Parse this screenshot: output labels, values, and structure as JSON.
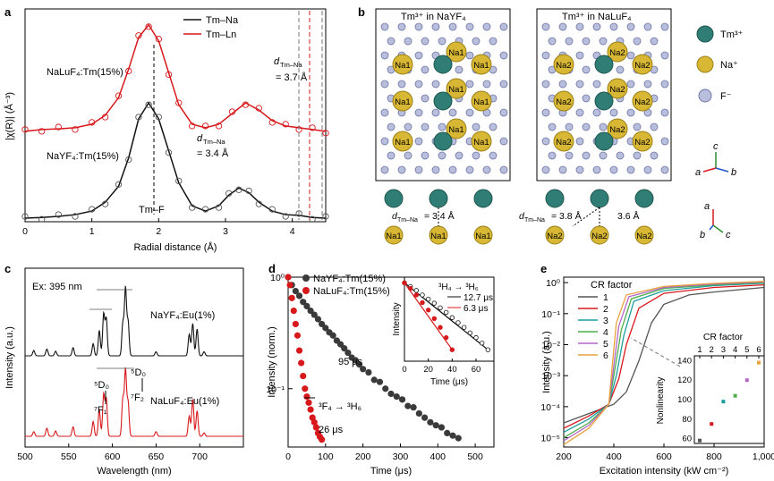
{
  "panels": {
    "a": {
      "letter": "a",
      "legend": [
        "Tm–Na",
        "Tm–Ln"
      ],
      "ylabel": "|χ(R)| (Å⁻³)",
      "xlabel": "Radial distance (Å)",
      "ticks": [
        "0",
        "1",
        "2",
        "3",
        "4"
      ],
      "ann_luf": "NaLuF₄:Tm(15%)",
      "ann_yf": "NaYF₄:Tm(15%)",
      "ann_d1_sym": "d",
      "ann_d1_sub": "Tm–Na",
      "ann_d1_val": "= 3.4 Å",
      "ann_d2_sym": "d",
      "ann_d2_sub": "Tm–Na",
      "ann_d2_val": "= 3.7 Å",
      "ann_tmf": "Tm–F"
    },
    "b": {
      "letter": "b",
      "title_left": "Tm³⁺ in NaYF₄",
      "title_right": "Tm³⁺ in NaLuF₄",
      "legend": [
        "Tm³⁺",
        "Na⁺",
        "F⁻"
      ],
      "na_left": "Na1",
      "na_right": "Na2",
      "d_left": "= 3.4 Å",
      "d_right1": "= 3.8 Å",
      "d_right2": "3.6 Å",
      "d_sym": "d",
      "d_sub": "Tm–Na",
      "axes1": [
        "c",
        "a",
        "b"
      ],
      "axes2": [
        "a",
        "b",
        "c"
      ]
    },
    "c": {
      "letter": "c",
      "ylabel": "Intensity (a.u.)",
      "xlabel": "Wavelength (nm)",
      "ticks": [
        "500",
        "550",
        "600",
        "650",
        "700"
      ],
      "ex": "Ex: 395 nm",
      "ann_y": "NaYF₄:Eu(1%)",
      "ann_l": "NaLuF₄:Eu(1%)",
      "d0": "⁵D₀",
      "f1": "⁷F₁",
      "f2": "⁷F₂"
    },
    "d": {
      "letter": "d",
      "ylabel": "Intensity (norm.)",
      "xlabel": "Time (μs)",
      "ticks": [
        "0",
        "100",
        "200",
        "300",
        "400",
        "500"
      ],
      "y_ticks": [
        "10⁰",
        "10⁻¹"
      ],
      "legend": [
        "NaYF₄:Tm(15%)",
        "NaLuF₄:Tm(15%)"
      ],
      "ann_95": "95 μs",
      "ann_26": "26 μs",
      "ann_trans": "³F₄ → ³H₆",
      "inset_title": "³H₄ → ³H₆",
      "inset_leg": [
        "12.7 μs",
        "6.3 μs"
      ],
      "inset_ylabel": "Intensity",
      "inset_xlabel": "Time (μs)",
      "inset_ticks": [
        "0",
        "20",
        "40",
        "60"
      ]
    },
    "e": {
      "letter": "e",
      "ylabel": "Intensity (a.u.)",
      "xlabel": "Excitation intensity (kW cm⁻²)",
      "x_ticks": [
        "200",
        "400",
        "600",
        "800",
        "1,000"
      ],
      "y_ticks": [
        "10⁰",
        "10⁻¹",
        "10⁻²",
        "10⁻³",
        "10⁻⁴",
        "10⁻⁵"
      ],
      "legend_title": "CR factor",
      "inset_title": "CR factor",
      "inset_ylabel": "Nonlinearity",
      "inset_xticks": [
        "1",
        "2",
        "3",
        "4",
        "5",
        "6"
      ],
      "inset_yticks": [
        "140",
        "120",
        "100",
        "80",
        "60"
      ]
    }
  },
  "colors": {
    "black": "#111111",
    "red": "#d7191c",
    "grey": "#3a3a3a"
  },
  "chart_data": [
    {
      "panel": "a",
      "type": "line",
      "xlabel": "Radial distance (Å)",
      "ylabel": "|χ(R)| (Å⁻³)",
      "xlim": [
        0,
        4.5
      ],
      "series": [
        {
          "name": "Tm–Na",
          "x": [
            0,
            0.25,
            0.5,
            0.75,
            1.0,
            1.2,
            1.4,
            1.55,
            1.7,
            1.85,
            2.0,
            2.15,
            2.3,
            2.5,
            2.7,
            2.9,
            3.05,
            3.2,
            3.35,
            3.5,
            3.7,
            3.9,
            4.1,
            4.3,
            4.5
          ],
          "y": [
            0.1,
            0.12,
            0.15,
            0.2,
            0.3,
            0.55,
            1.0,
            1.8,
            2.9,
            3.35,
            2.9,
            2.0,
            1.1,
            0.45,
            0.3,
            0.45,
            0.75,
            0.95,
            0.82,
            0.55,
            0.3,
            0.2,
            0.18,
            0.12,
            0.1
          ]
        },
        {
          "name": "Tm–Ln",
          "x": [
            0,
            0.25,
            0.5,
            0.75,
            1.0,
            1.2,
            1.4,
            1.55,
            1.7,
            1.85,
            2.0,
            2.15,
            2.3,
            2.5,
            2.7,
            2.9,
            3.1,
            3.3,
            3.5,
            3.7,
            3.9,
            4.1,
            4.3,
            4.5
          ],
          "y": [
            2.55,
            2.6,
            2.62,
            2.65,
            2.75,
            3.0,
            3.5,
            4.3,
            5.2,
            5.55,
            5.1,
            4.2,
            3.3,
            2.75,
            2.65,
            2.75,
            3.05,
            3.35,
            3.15,
            2.85,
            2.7,
            2.65,
            2.6,
            2.55
          ]
        }
      ]
    },
    {
      "panel": "c",
      "type": "line",
      "xlabel": "Wavelength (nm)",
      "ylabel": "Intensity (a.u.)",
      "xlim": [
        500,
        750
      ],
      "peaks_nm": [
        510,
        525,
        535,
        555,
        578,
        585,
        590,
        593,
        612,
        615,
        618,
        650,
        688,
        692,
        697,
        705
      ],
      "series": [
        {
          "name": "NaYF₄:Eu(1%)",
          "heights": [
            0.08,
            0.1,
            0.07,
            0.12,
            0.18,
            0.38,
            0.62,
            0.55,
            0.48,
            1.0,
            0.5,
            0.06,
            0.32,
            0.48,
            0.4,
            0.06
          ]
        },
        {
          "name": "NaLuF₄:Eu(1%)",
          "heights": [
            0.07,
            0.12,
            0.08,
            0.14,
            0.22,
            0.4,
            0.62,
            0.55,
            0.55,
            0.98,
            0.5,
            0.07,
            0.3,
            0.55,
            0.38,
            0.05
          ]
        }
      ]
    },
    {
      "panel": "d",
      "type": "scatter",
      "xlabel": "Time (μs)",
      "ylabel": "Intensity (norm.)",
      "xlim": [
        0,
        550
      ],
      "y_log": true,
      "ylim": [
        0.03,
        1
      ],
      "series": [
        {
          "name": "NaYF₄:Tm(15%)",
          "x": [
            0,
            10,
            20,
            30,
            40,
            50,
            60,
            70,
            80,
            90,
            100,
            110,
            120,
            130,
            140,
            150,
            160,
            170,
            180,
            190,
            200,
            215,
            230,
            245,
            260,
            275,
            290,
            305,
            320,
            335,
            350,
            365,
            380,
            395,
            410,
            425,
            440,
            455
          ],
          "y": [
            1.0,
            0.85,
            0.75,
            0.68,
            0.6,
            0.55,
            0.5,
            0.46,
            0.42,
            0.38,
            0.35,
            0.32,
            0.3,
            0.27,
            0.25,
            0.23,
            0.21,
            0.19,
            0.18,
            0.165,
            0.15,
            0.14,
            0.12,
            0.115,
            0.1,
            0.09,
            0.085,
            0.08,
            0.07,
            0.068,
            0.06,
            0.055,
            0.05,
            0.047,
            0.045,
            0.04,
            0.038,
            0.036
          ]
        },
        {
          "name": "NaLuF₄:Tm(15%)",
          "x": [
            0,
            5,
            10,
            15,
            20,
            25,
            30,
            35,
            40,
            45,
            50,
            55,
            60,
            65,
            70,
            75,
            80,
            85,
            90
          ],
          "y": [
            1.0,
            0.85,
            0.65,
            0.5,
            0.38,
            0.3,
            0.22,
            0.17,
            0.13,
            0.1,
            0.085,
            0.075,
            0.065,
            0.055,
            0.05,
            0.045,
            0.04,
            0.037,
            0.035
          ]
        }
      ],
      "inset": {
        "xlabel": "Time (μs)",
        "ylabel": "Intensity",
        "xlim": [
          0,
          75
        ],
        "series": [
          {
            "name": "12.7 μs",
            "x": [
              0,
              5,
              10,
              15,
              20,
              25,
              30,
              35,
              40,
              45,
              50,
              55,
              60,
              65,
              70
            ],
            "y": [
              1.0,
              0.9,
              0.8,
              0.7,
              0.62,
              0.55,
              0.48,
              0.42,
              0.36,
              0.31,
              0.27,
              0.23,
              0.2,
              0.17,
              0.14
            ]
          },
          {
            "name": "6.3 μs",
            "x": [
              0,
              5,
              10,
              15,
              20,
              25,
              30,
              35,
              40
            ],
            "y": [
              1.0,
              0.85,
              0.7,
              0.56,
              0.45,
              0.35,
              0.27,
              0.2,
              0.14
            ]
          }
        ]
      }
    },
    {
      "panel": "e",
      "type": "line",
      "xlabel": "Excitation intensity (kW cm⁻²)",
      "ylabel": "Intensity (a.u.)",
      "xlim": [
        200,
        1000
      ],
      "y_log": true,
      "ylim": [
        5e-06,
        1.5
      ],
      "series": [
        {
          "name": "1",
          "color": "#555555",
          "x": [
            200,
            300,
            400,
            450,
            500,
            550,
            600,
            700,
            800,
            1000
          ],
          "y": [
            3e-05,
            6e-05,
            0.00012,
            0.0003,
            0.003,
            0.05,
            0.2,
            0.4,
            0.5,
            0.7
          ]
        },
        {
          "name": "2",
          "color": "#d7191c",
          "x": [
            200,
            300,
            380,
            420,
            450,
            500,
            600,
            800,
            1000
          ],
          "y": [
            2e-05,
            5e-05,
            0.00012,
            0.0008,
            0.01,
            0.15,
            0.45,
            0.7,
            0.85
          ]
        },
        {
          "name": "3",
          "color": "#1b9e9e",
          "x": [
            200,
            300,
            380,
            410,
            440,
            480,
            600,
            800,
            1000
          ],
          "y": [
            1.5e-05,
            4e-05,
            0.00012,
            0.001,
            0.02,
            0.25,
            0.55,
            0.8,
            0.95
          ]
        },
        {
          "name": "4",
          "color": "#4daf4a",
          "x": [
            200,
            300,
            380,
            400,
            430,
            470,
            600,
            800,
            1000
          ],
          "y": [
            1e-05,
            3e-05,
            0.00012,
            0.001,
            0.03,
            0.3,
            0.65,
            0.85,
            1.0
          ]
        },
        {
          "name": "5",
          "color": "#b565c8",
          "x": [
            200,
            300,
            380,
            395,
            420,
            460,
            600,
            800,
            1000
          ],
          "y": [
            8e-06,
            2.5e-05,
            0.00012,
            0.001,
            0.04,
            0.35,
            0.7,
            0.9,
            1.05
          ]
        },
        {
          "name": "6",
          "color": "#e8a33d",
          "x": [
            200,
            300,
            380,
            390,
            410,
            450,
            600,
            800,
            1000
          ],
          "y": [
            6e-06,
            2e-05,
            0.00012,
            0.001,
            0.05,
            0.4,
            0.75,
            0.95,
            1.1
          ]
        }
      ],
      "inset": {
        "xlabel": "CR factor",
        "ylabel": "Nonlinearity",
        "xlim": [
          1,
          6
        ],
        "ylim": [
          55,
          145
        ],
        "series": [
          {
            "name": "Nonlinearity",
            "x": [
              1,
              2,
              3,
              4,
              5,
              6
            ],
            "y": [
              58,
              75,
              98,
              104,
              120,
              138
            ]
          }
        ]
      }
    }
  ]
}
